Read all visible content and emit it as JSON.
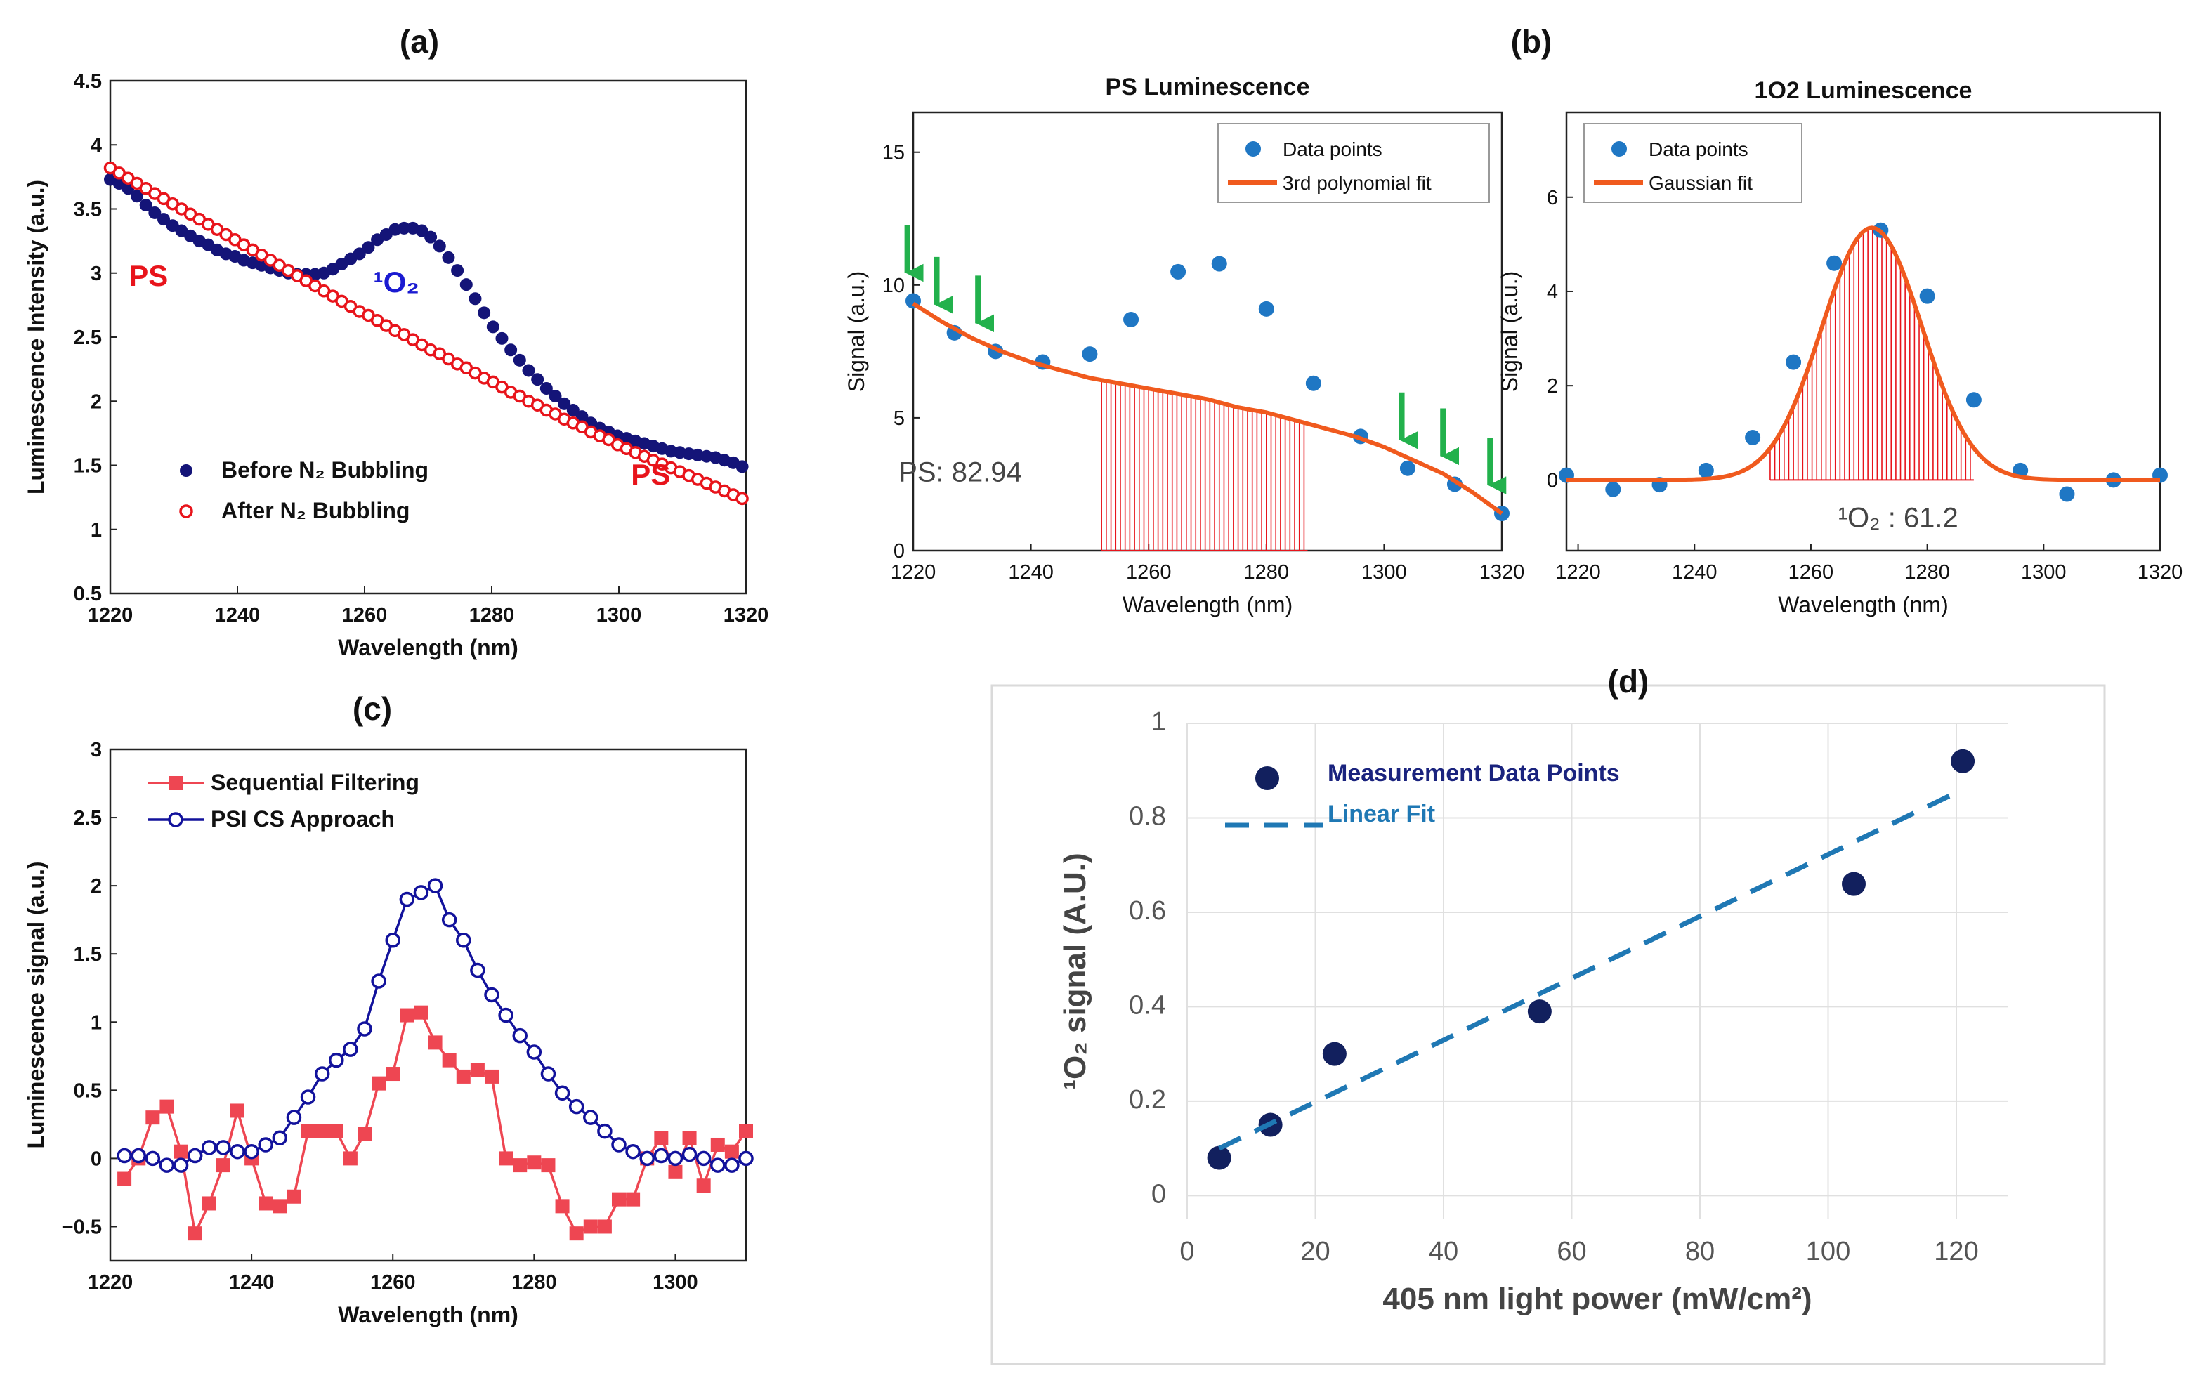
{
  "panels": [
    {
      "id": "a",
      "panel_label": "(a)",
      "chart_data": {
        "type": "scatter",
        "title": "",
        "xlabel": "Wavelength (nm)",
        "ylabel": "Luminescence Intensity (a.u.)",
        "xlim": [
          1220,
          1320
        ],
        "ylim": [
          0.5,
          4.5
        ],
        "xticks": [
          1220,
          1240,
          1260,
          1280,
          1300,
          1320
        ],
        "yticks": [
          0.5,
          1,
          1.5,
          2,
          2.5,
          3,
          3.5,
          4,
          4.5
        ],
        "ytick_labels": [
          "0.5",
          "1",
          "1.5",
          "2",
          "2.5",
          "3",
          "3.5",
          "4",
          "4.5"
        ],
        "legend_position": "bottom-left",
        "annotations": [
          {
            "text": "PS",
            "color": "#e8141b",
            "x": 1226,
            "y": 2.9
          },
          {
            "text": "¹O₂",
            "color": "#1a1ad1",
            "x": 1265,
            "y": 2.85
          },
          {
            "text": "PS",
            "color": "#e8141b",
            "x": 1305,
            "y": 1.35
          }
        ],
        "series": [
          {
            "name": "Before N₂ Bubbling",
            "color": "#141478",
            "marker": "filled-circle",
            "x": [
              1220,
              1221.4,
              1222.8,
              1224.2,
              1225.6,
              1227,
              1228.4,
              1229.8,
              1231.2,
              1232.6,
              1234,
              1235.4,
              1236.8,
              1238.2,
              1239.6,
              1241,
              1242.4,
              1243.8,
              1245.2,
              1246.6,
              1248,
              1249.4,
              1250.8,
              1252.2,
              1253.6,
              1255,
              1256.4,
              1257.8,
              1259.2,
              1260.6,
              1262,
              1263.4,
              1264.8,
              1266.2,
              1267.6,
              1269,
              1270.4,
              1271.8,
              1273.2,
              1274.6,
              1276,
              1277.4,
              1278.8,
              1280.2,
              1281.6,
              1283,
              1284.4,
              1285.8,
              1287.2,
              1288.6,
              1290,
              1291.4,
              1292.8,
              1294.2,
              1295.6,
              1297,
              1298.4,
              1299.8,
              1301.2,
              1302.6,
              1304,
              1305.4,
              1306.8,
              1308.2,
              1309.6,
              1311,
              1312.4,
              1313.8,
              1315.2,
              1316.6,
              1318,
              1319.4
            ],
            "y": [
              3.73,
              3.7,
              3.66,
              3.6,
              3.53,
              3.47,
              3.42,
              3.37,
              3.33,
              3.29,
              3.25,
              3.22,
              3.18,
              3.15,
              3.13,
              3.1,
              3.08,
              3.06,
              3.04,
              3.02,
              3.0,
              2.99,
              2.99,
              2.99,
              3.0,
              3.03,
              3.07,
              3.11,
              3.15,
              3.2,
              3.26,
              3.3,
              3.34,
              3.35,
              3.35,
              3.33,
              3.28,
              3.21,
              3.12,
              3.02,
              2.91,
              2.8,
              2.69,
              2.58,
              2.49,
              2.4,
              2.32,
              2.24,
              2.17,
              2.1,
              2.04,
              1.98,
              1.93,
              1.88,
              1.83,
              1.79,
              1.76,
              1.73,
              1.71,
              1.69,
              1.67,
              1.65,
              1.63,
              1.61,
              1.6,
              1.59,
              1.58,
              1.57,
              1.56,
              1.54,
              1.52,
              1.49
            ]
          },
          {
            "name": "After N₂ Bubbling",
            "color": "#e8141b",
            "marker": "open-circle",
            "x": [
              1220,
              1221.4,
              1222.8,
              1224.2,
              1225.6,
              1227,
              1228.4,
              1229.8,
              1231.2,
              1232.6,
              1234,
              1235.4,
              1236.8,
              1238.2,
              1239.6,
              1241,
              1242.4,
              1243.8,
              1245.2,
              1246.6,
              1248,
              1249.4,
              1250.8,
              1252.2,
              1253.6,
              1255,
              1256.4,
              1257.8,
              1259.2,
              1260.6,
              1262,
              1263.4,
              1264.8,
              1266.2,
              1267.6,
              1269,
              1270.4,
              1271.8,
              1273.2,
              1274.6,
              1276,
              1277.4,
              1278.8,
              1280.2,
              1281.6,
              1283,
              1284.4,
              1285.8,
              1287.2,
              1288.6,
              1290,
              1291.4,
              1292.8,
              1294.2,
              1295.6,
              1297,
              1298.4,
              1299.8,
              1301.2,
              1302.6,
              1304,
              1305.4,
              1306.8,
              1308.2,
              1309.6,
              1311,
              1312.4,
              1313.8,
              1315.2,
              1316.6,
              1318,
              1319.4
            ],
            "y": [
              3.82,
              3.78,
              3.74,
              3.7,
              3.66,
              3.62,
              3.58,
              3.54,
              3.5,
              3.46,
              3.42,
              3.38,
              3.34,
              3.3,
              3.26,
              3.22,
              3.18,
              3.14,
              3.1,
              3.06,
              3.02,
              2.98,
              2.94,
              2.9,
              2.86,
              2.82,
              2.78,
              2.74,
              2.7,
              2.67,
              2.63,
              2.59,
              2.55,
              2.52,
              2.48,
              2.44,
              2.4,
              2.37,
              2.33,
              2.29,
              2.26,
              2.22,
              2.18,
              2.15,
              2.11,
              2.07,
              2.04,
              2.0,
              1.97,
              1.93,
              1.9,
              1.86,
              1.83,
              1.8,
              1.76,
              1.73,
              1.7,
              1.66,
              1.63,
              1.6,
              1.57,
              1.54,
              1.51,
              1.48,
              1.45,
              1.42,
              1.39,
              1.36,
              1.33,
              1.3,
              1.27,
              1.24
            ]
          }
        ]
      }
    },
    {
      "id": "b-left",
      "panel_label": "(b)",
      "chart_data": {
        "type": "scatter",
        "title": "PS Luminescence",
        "xlabel": "Wavelength (nm)",
        "ylabel": "Signal (a.u.)",
        "xlim": [
          1220,
          1320
        ],
        "ylim": [
          0,
          16.5
        ],
        "xticks": [
          1220,
          1240,
          1260,
          1280,
          1300,
          1320
        ],
        "yticks": [
          0,
          5,
          10,
          15
        ],
        "ytick_labels": [
          "0",
          "5",
          "10",
          "15"
        ],
        "legend_position": "top-right",
        "area_annotation": {
          "text": "PS: 82.94",
          "from_x": 1252,
          "to_x": 1287,
          "color": "#e8141b"
        },
        "arrow_x": [
          1219,
          1224,
          1231,
          1303,
          1310,
          1318
        ],
        "series": [
          {
            "name": "Data points",
            "color": "#1f77c4",
            "marker": "filled-circle",
            "x": [
              1220,
              1227,
              1234,
              1242,
              1250,
              1257,
              1265,
              1272,
              1280,
              1288,
              1296,
              1304,
              1312,
              1320
            ],
            "y": [
              9.4,
              8.2,
              7.5,
              7.1,
              7.4,
              8.7,
              10.5,
              10.8,
              9.1,
              6.3,
              4.3,
              3.1,
              2.5,
              1.4
            ]
          },
          {
            "name": "3rd polynomial fit",
            "color": "#f05a1e",
            "marker": "line",
            "x": [
              1220,
              1225,
              1230,
              1235,
              1240,
              1245,
              1250,
              1255,
              1260,
              1265,
              1270,
              1275,
              1280,
              1285,
              1290,
              1295,
              1300,
              1305,
              1310,
              1315,
              1320
            ],
            "y": [
              9.3,
              8.6,
              8.0,
              7.5,
              7.1,
              6.8,
              6.5,
              6.3,
              6.1,
              5.9,
              5.7,
              5.4,
              5.2,
              4.9,
              4.6,
              4.3,
              3.9,
              3.4,
              2.9,
              2.2,
              1.4
            ]
          }
        ]
      }
    },
    {
      "id": "b-right",
      "panel_label": "",
      "chart_data": {
        "type": "scatter",
        "title": "1O2 Luminescence",
        "xlabel": "Wavelength (nm)",
        "ylabel": "Signal (a.u.)",
        "xlim": [
          1218,
          1320
        ],
        "ylim": [
          -1.5,
          7.8
        ],
        "xticks": [
          1220,
          1240,
          1260,
          1280,
          1300,
          1320
        ],
        "yticks": [
          0,
          2,
          4,
          6
        ],
        "ytick_labels": [
          "0",
          "2",
          "4",
          "6"
        ],
        "legend_position": "top-left",
        "area_annotation": {
          "text": "¹O₂ : 61.2",
          "from_x": 1253,
          "to_x": 1288,
          "color": "#e8141b"
        },
        "series": [
          {
            "name": "Data points",
            "color": "#1f77c4",
            "marker": "filled-circle",
            "x": [
              1218,
              1226,
              1234,
              1242,
              1250,
              1257,
              1264,
              1272,
              1280,
              1288,
              1296,
              1304,
              1312,
              1320
            ],
            "y": [
              0.1,
              -0.2,
              -0.1,
              0.2,
              0.9,
              2.5,
              4.6,
              5.3,
              3.9,
              1.7,
              0.2,
              -0.3,
              0.0,
              0.1
            ]
          },
          {
            "name": "Gaussian fit",
            "color": "#f05a1e",
            "marker": "line",
            "gaussian": {
              "amplitude": 5.35,
              "center": 1270.5,
              "sigma": 8.6
            }
          }
        ]
      }
    },
    {
      "id": "c",
      "panel_label": "(c)",
      "chart_data": {
        "type": "line",
        "title": "",
        "xlabel": "Wavelength (nm)",
        "ylabel": "Luminescence signal (a.u.)",
        "xlim": [
          1220,
          1310
        ],
        "ylim": [
          -0.75,
          3
        ],
        "xticks": [
          1220,
          1240,
          1260,
          1280,
          1300
        ],
        "yticks": [
          -0.5,
          0,
          0.5,
          1,
          1.5,
          2,
          2.5,
          3
        ],
        "ytick_labels": [
          "−0.5",
          "0",
          "0.5",
          "1",
          "1.5",
          "2",
          "2.5",
          "3"
        ],
        "legend_position": "top-left",
        "series": [
          {
            "name": "Sequential Filtering",
            "color": "#ee4652",
            "marker": "filled-square",
            "x": [
              1222,
              1224,
              1226,
              1228,
              1230,
              1232,
              1234,
              1236,
              1238,
              1240,
              1242,
              1244,
              1246,
              1248,
              1250,
              1252,
              1254,
              1256,
              1258,
              1260,
              1262,
              1264,
              1266,
              1268,
              1270,
              1272,
              1274,
              1276,
              1278,
              1280,
              1282,
              1284,
              1286,
              1288,
              1290,
              1292,
              1294,
              1296,
              1298,
              1300,
              1302,
              1304,
              1306,
              1308,
              1310
            ],
            "y": [
              -0.15,
              0.0,
              0.3,
              0.38,
              0.05,
              -0.55,
              -0.33,
              -0.05,
              0.35,
              0.0,
              -0.33,
              -0.35,
              -0.28,
              0.2,
              0.2,
              0.2,
              0.0,
              0.18,
              0.55,
              0.62,
              1.05,
              1.07,
              0.85,
              0.72,
              0.6,
              0.65,
              0.6,
              0.0,
              -0.05,
              -0.03,
              -0.05,
              -0.35,
              -0.55,
              -0.5,
              -0.5,
              -0.3,
              -0.3,
              0.0,
              0.15,
              -0.1,
              0.15,
              -0.2,
              0.1,
              0.05,
              0.2
            ]
          },
          {
            "name": "PSI CS Approach",
            "color": "#12129c",
            "marker": "open-circle",
            "x": [
              1222,
              1224,
              1226,
              1228,
              1230,
              1232,
              1234,
              1236,
              1238,
              1240,
              1242,
              1244,
              1246,
              1248,
              1250,
              1252,
              1254,
              1256,
              1258,
              1260,
              1262,
              1264,
              1266,
              1268,
              1270,
              1272,
              1274,
              1276,
              1278,
              1280,
              1282,
              1284,
              1286,
              1288,
              1290,
              1292,
              1294,
              1296,
              1298,
              1300,
              1302,
              1304,
              1306,
              1308,
              1310
            ],
            "y": [
              0.02,
              0.02,
              0.0,
              -0.05,
              -0.05,
              0.02,
              0.08,
              0.08,
              0.05,
              0.05,
              0.1,
              0.15,
              0.3,
              0.45,
              0.62,
              0.72,
              0.8,
              0.95,
              1.3,
              1.6,
              1.9,
              1.95,
              2.0,
              1.75,
              1.6,
              1.38,
              1.2,
              1.05,
              0.9,
              0.78,
              0.62,
              0.48,
              0.38,
              0.3,
              0.2,
              0.1,
              0.05,
              0.0,
              0.02,
              0.0,
              0.03,
              0.0,
              -0.05,
              -0.05,
              0.0
            ]
          }
        ]
      }
    },
    {
      "id": "d",
      "panel_label": "(d)",
      "chart_data": {
        "type": "scatter",
        "title": "",
        "xlabel": "405 nm light power (mW/cm²)",
        "ylabel": "¹O₂ signal (A.U.)",
        "xlim": [
          0,
          128
        ],
        "ylim": [
          -0.05,
          1
        ],
        "xticks": [
          0,
          20,
          40,
          60,
          80,
          100,
          120
        ],
        "yticks": [
          0,
          0.2,
          0.4,
          0.6,
          0.8,
          1
        ],
        "ytick_labels": [
          "0",
          "0.2",
          "0.4",
          "0.6",
          "0.8",
          "1"
        ],
        "legend_position": "top-left",
        "series": [
          {
            "name": "Measurement Data Points",
            "color": "#12205e",
            "marker": "filled-circle",
            "x": [
              5,
              13,
              23,
              55,
              104,
              121
            ],
            "y": [
              0.08,
              0.15,
              0.3,
              0.39,
              0.66,
              0.92
            ]
          },
          {
            "name": "Linear Fit",
            "color": "#1f78b4",
            "marker": "dashed-line",
            "x": [
              5,
              121
            ],
            "y": [
              0.1,
              0.86
            ]
          }
        ]
      }
    }
  ]
}
